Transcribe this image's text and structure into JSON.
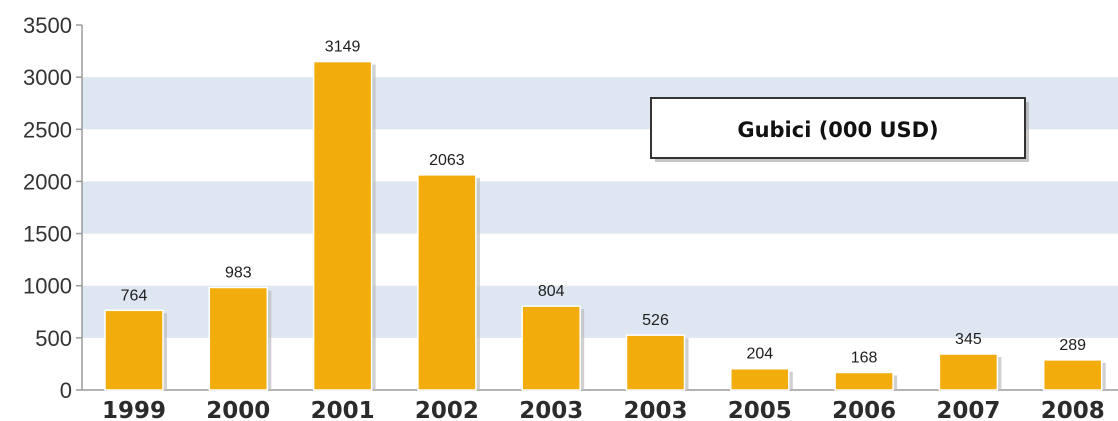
{
  "chart_data": {
    "type": "bar",
    "title": "",
    "xlabel": "",
    "ylabel": "",
    "ylim": [
      0,
      3500
    ],
    "yticks": [
      0,
      500,
      1000,
      1500,
      2000,
      2500,
      3000,
      3500
    ],
    "ytick_labels": [
      "0",
      "500",
      "1000",
      "1500",
      "2000",
      "2500",
      "3000",
      "3500"
    ],
    "categories": [
      "1999",
      "2000",
      "2001",
      "2002",
      "2003",
      "2003",
      "2005",
      "2006",
      "2007",
      "2008"
    ],
    "series": [
      {
        "name": "Gubici (000 USD)",
        "values": [
          764,
          983,
          3149,
          2063,
          804,
          526,
          204,
          168,
          345,
          289
        ],
        "data_labels": [
          "764",
          "983",
          "3149",
          "2063",
          "804",
          "526",
          "204",
          "168",
          "345",
          "289"
        ]
      }
    ],
    "grid": "alternating horizontal bands",
    "legend_placement": "top-right",
    "colors": {
      "bar": "#f2ac0c",
      "bar_shadow": "#bcbcbc",
      "band": "#dde6f1",
      "axis": "#9a9a9a",
      "legend_border": "#333333"
    }
  }
}
